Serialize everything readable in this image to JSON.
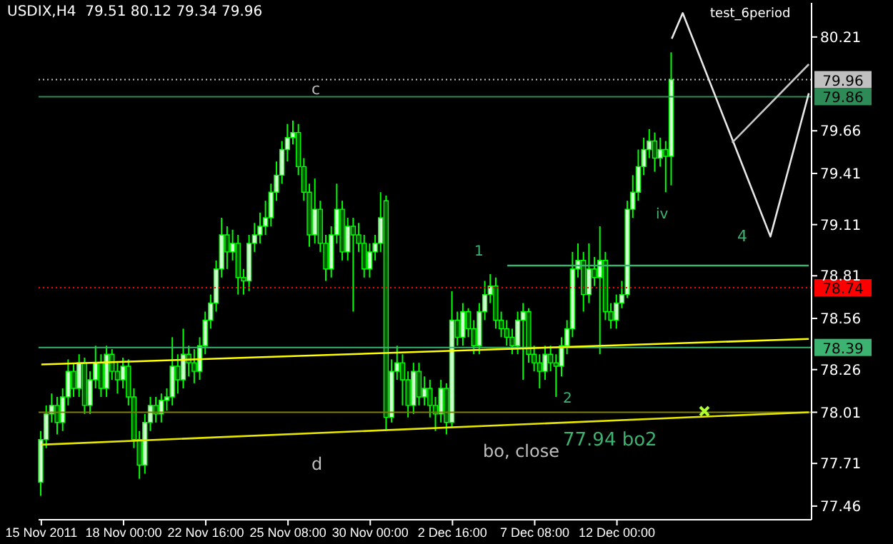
{
  "chart_data": {
    "type": "candlestick",
    "title": "USDIX,H4  79.51 80.12 79.34 79.96",
    "categories": [
      "15 Nov 2011",
      null,
      null,
      null,
      null,
      null,
      null,
      null,
      null,
      null,
      null,
      null,
      null,
      null,
      null,
      "18 Nov 00:00",
      null,
      null,
      null,
      null,
      null,
      null,
      null,
      null,
      null,
      null,
      null,
      null,
      null,
      null,
      "22 Nov 16:00",
      null,
      null,
      null,
      null,
      null,
      null,
      null,
      null,
      null,
      null,
      null,
      null,
      null,
      null,
      "25 Nov 08:00",
      null,
      null,
      null,
      null,
      null,
      null,
      null,
      null,
      null,
      null,
      null,
      null,
      null,
      null,
      "30 Nov 00:00",
      null,
      null,
      null,
      null,
      null,
      null,
      null,
      null,
      null,
      null,
      null,
      null,
      null,
      null,
      "2 Dec 16:00",
      null,
      null,
      null,
      null,
      null,
      null,
      null,
      null,
      null,
      null,
      null,
      null,
      null,
      null,
      "7 Dec 08:00",
      null,
      null,
      null,
      null,
      null,
      null,
      null,
      null,
      null,
      null,
      null,
      null,
      null,
      null,
      "12 Dec 00:00",
      null,
      null,
      null,
      null,
      null,
      null,
      null,
      null,
      null,
      null,
      null,
      null,
      null,
      null,
      null,
      null,
      null,
      null,
      null,
      null,
      null,
      null,
      null,
      null,
      null,
      null,
      null,
      null,
      null,
      null,
      null,
      null,
      null,
      null,
      null
    ],
    "ohlc": [
      [
        77.6,
        77.9,
        77.52,
        77.85
      ],
      [
        77.85,
        78.05,
        77.8,
        78.0
      ],
      [
        78.0,
        78.12,
        77.95,
        78.05
      ],
      [
        78.05,
        78.1,
        77.88,
        77.95
      ],
      [
        77.95,
        78.15,
        77.9,
        78.1
      ],
      [
        78.1,
        78.32,
        78.05,
        78.25
      ],
      [
        78.25,
        78.3,
        78.1,
        78.15
      ],
      [
        78.15,
        78.35,
        78.1,
        78.3
      ],
      [
        78.3,
        78.33,
        78.0,
        78.05
      ],
      [
        78.05,
        78.25,
        78.0,
        78.2
      ],
      [
        78.2,
        78.4,
        78.15,
        78.3
      ],
      [
        78.3,
        78.35,
        78.1,
        78.15
      ],
      [
        78.15,
        78.4,
        78.1,
        78.35
      ],
      [
        78.35,
        78.38,
        78.2,
        78.25
      ],
      [
        78.25,
        78.3,
        78.12,
        78.2
      ],
      [
        78.2,
        78.33,
        78.15,
        78.28
      ],
      [
        78.28,
        78.32,
        78.05,
        78.1
      ],
      [
        78.1,
        78.15,
        77.8,
        77.85
      ],
      [
        77.85,
        77.9,
        77.62,
        77.7
      ],
      [
        77.7,
        78.0,
        77.65,
        77.95
      ],
      [
        77.95,
        78.1,
        77.9,
        78.05
      ],
      [
        78.05,
        78.1,
        77.95,
        78.0
      ],
      [
        78.0,
        78.12,
        77.95,
        78.08
      ],
      [
        78.08,
        78.15,
        78.02,
        78.1
      ],
      [
        78.1,
        78.45,
        78.05,
        78.28
      ],
      [
        78.28,
        78.35,
        78.12,
        78.2
      ],
      [
        78.2,
        78.5,
        78.15,
        78.35
      ],
      [
        78.35,
        78.4,
        78.22,
        78.3
      ],
      [
        78.3,
        78.38,
        78.18,
        78.25
      ],
      [
        78.25,
        78.45,
        78.2,
        78.4
      ],
      [
        78.4,
        78.6,
        78.35,
        78.55
      ],
      [
        78.55,
        78.7,
        78.5,
        78.65
      ],
      [
        78.65,
        78.9,
        78.6,
        78.85
      ],
      [
        78.85,
        79.15,
        78.8,
        79.05
      ],
      [
        79.05,
        79.1,
        78.85,
        78.95
      ],
      [
        78.95,
        79.08,
        78.9,
        79.0
      ],
      [
        79.0,
        79.05,
        78.7,
        78.8
      ],
      [
        78.8,
        78.85,
        78.7,
        78.78
      ],
      [
        78.78,
        79.05,
        78.72,
        79.0
      ],
      [
        79.0,
        79.12,
        78.95,
        79.05
      ],
      [
        79.05,
        79.18,
        79.0,
        79.1
      ],
      [
        79.1,
        79.25,
        79.05,
        79.15
      ],
      [
        79.15,
        79.35,
        79.1,
        79.3
      ],
      [
        79.3,
        79.48,
        79.25,
        79.4
      ],
      [
        79.4,
        79.6,
        79.35,
        79.55
      ],
      [
        79.55,
        79.7,
        79.48,
        79.62
      ],
      [
        79.62,
        79.72,
        79.58,
        79.65
      ],
      [
        79.65,
        79.7,
        79.4,
        79.45
      ],
      [
        79.45,
        79.5,
        79.25,
        79.3
      ],
      [
        79.3,
        79.35,
        78.98,
        79.05
      ],
      [
        79.05,
        79.38,
        79.0,
        79.2
      ],
      [
        79.2,
        79.25,
        78.95,
        79.0
      ],
      [
        79.0,
        79.05,
        78.78,
        78.85
      ],
      [
        78.85,
        79.1,
        78.8,
        79.05
      ],
      [
        79.05,
        79.35,
        79.0,
        79.2
      ],
      [
        79.2,
        79.25,
        78.9,
        78.95
      ],
      [
        78.95,
        79.15,
        78.9,
        79.1
      ],
      [
        79.1,
        79.15,
        78.6,
        79.05
      ],
      [
        79.05,
        79.12,
        78.95,
        79.0
      ],
      [
        79.0,
        79.05,
        78.8,
        78.85
      ],
      [
        78.85,
        79.0,
        78.8,
        78.95
      ],
      [
        78.95,
        79.05,
        78.9,
        79.0
      ],
      [
        79.0,
        79.3,
        78.95,
        79.15
      ],
      [
        79.25,
        79.28,
        77.9,
        77.98
      ],
      [
        77.98,
        78.32,
        77.95,
        78.25
      ],
      [
        78.25,
        78.4,
        78.2,
        78.3
      ],
      [
        78.3,
        78.35,
        78.05,
        78.2
      ],
      [
        78.2,
        78.25,
        77.98,
        78.05
      ],
      [
        78.05,
        78.3,
        78.0,
        78.25
      ],
      [
        78.25,
        78.3,
        78.05,
        78.1
      ],
      [
        78.1,
        78.22,
        78.05,
        78.15
      ],
      [
        78.15,
        78.2,
        77.98,
        78.05
      ],
      [
        78.05,
        78.1,
        77.9,
        78.0
      ],
      [
        78.0,
        78.2,
        77.95,
        78.15
      ],
      [
        78.15,
        78.18,
        77.88,
        77.95
      ],
      [
        77.95,
        78.72,
        77.92,
        78.55
      ],
      [
        78.55,
        78.6,
        78.4,
        78.45
      ],
      [
        78.45,
        78.65,
        78.4,
        78.6
      ],
      [
        78.6,
        78.62,
        78.45,
        78.5
      ],
      [
        78.5,
        78.55,
        78.35,
        78.4
      ],
      [
        78.4,
        78.65,
        78.35,
        78.6
      ],
      [
        78.6,
        78.78,
        78.55,
        78.7
      ],
      [
        78.7,
        78.82,
        78.65,
        78.75
      ],
      [
        78.75,
        78.8,
        78.5,
        78.55
      ],
      [
        78.55,
        78.6,
        78.45,
        78.5
      ],
      [
        78.5,
        78.55,
        78.4,
        78.45
      ],
      [
        78.45,
        78.5,
        78.35,
        78.4
      ],
      [
        78.4,
        78.6,
        78.35,
        78.55
      ],
      [
        78.55,
        78.65,
        78.2,
        78.6
      ],
      [
        78.6,
        78.62,
        78.3,
        78.35
      ],
      [
        78.35,
        78.4,
        78.25,
        78.3
      ],
      [
        78.3,
        78.35,
        78.15,
        78.25
      ],
      [
        78.25,
        78.4,
        78.2,
        78.35
      ],
      [
        78.35,
        78.4,
        78.25,
        78.3
      ],
      [
        78.3,
        78.35,
        78.1,
        78.28
      ],
      [
        78.28,
        78.45,
        78.22,
        78.4
      ],
      [
        78.4,
        78.55,
        78.35,
        78.5
      ],
      [
        78.5,
        78.95,
        78.45,
        78.85
      ],
      [
        78.85,
        79.0,
        78.8,
        78.9
      ],
      [
        78.9,
        78.95,
        78.6,
        78.7
      ],
      [
        78.7,
        79.0,
        78.65,
        78.85
      ],
      [
        78.85,
        78.92,
        78.75,
        78.8
      ],
      [
        78.8,
        79.1,
        78.35,
        78.9
      ],
      [
        78.9,
        78.95,
        78.55,
        78.6
      ],
      [
        78.6,
        78.65,
        78.5,
        78.55
      ],
      [
        78.55,
        78.7,
        78.5,
        78.65
      ],
      [
        78.65,
        78.78,
        78.62,
        78.7
      ],
      [
        78.7,
        79.25,
        78.68,
        79.2
      ],
      [
        79.2,
        79.4,
        79.15,
        79.3
      ],
      [
        79.3,
        79.55,
        79.25,
        79.45
      ],
      [
        79.45,
        79.62,
        79.4,
        79.55
      ],
      [
        79.55,
        79.67,
        79.5,
        79.6
      ],
      [
        79.6,
        79.65,
        79.42,
        79.5
      ],
      [
        79.5,
        79.62,
        79.45,
        79.55
      ],
      [
        79.55,
        79.6,
        79.3,
        79.51
      ],
      [
        79.51,
        80.12,
        79.34,
        79.96
      ],
      null,
      null,
      null,
      null,
      null,
      null,
      null,
      null,
      null,
      null,
      null,
      null,
      null,
      null,
      null,
      null,
      null,
      null,
      null,
      null,
      null,
      null,
      null,
      null,
      null
    ],
    "series": [
      {
        "type": "line",
        "color": "#ffff00",
        "values": [
          78.29,
          null,
          null,
          null,
          null,
          null,
          null,
          null,
          null,
          null,
          null,
          null,
          null,
          null,
          null,
          null,
          null,
          null,
          null,
          null,
          null,
          null,
          null,
          null,
          null,
          null,
          null,
          null,
          null,
          null,
          null,
          null,
          null,
          null,
          null,
          null,
          null,
          null,
          null,
          null,
          null,
          null,
          null,
          null,
          null,
          null,
          null,
          null,
          null,
          null,
          null,
          null,
          null,
          null,
          null,
          null,
          null,
          null,
          null,
          null,
          null,
          null,
          null,
          null,
          null,
          null,
          null,
          null,
          null,
          null,
          null,
          null,
          null,
          null,
          null,
          null,
          null,
          null,
          null,
          null,
          null,
          null,
          null,
          null,
          null,
          null,
          null,
          null,
          null,
          null,
          null,
          null,
          null,
          null,
          null,
          null,
          null,
          null,
          null,
          null,
          null,
          null,
          null,
          null,
          null,
          null,
          null,
          null,
          null,
          null,
          null,
          null,
          null,
          null,
          null,
          null,
          null,
          null,
          null,
          null,
          null,
          null,
          null,
          null,
          null,
          null,
          null,
          null,
          null,
          null,
          null,
          null,
          null,
          null,
          null,
          null,
          null,
          null,
          null,
          null,
          78.44
        ]
      },
      {
        "type": "line",
        "color": "#e6e600",
        "values": [
          77.82,
          null,
          null,
          null,
          null,
          null,
          null,
          null,
          null,
          null,
          null,
          null,
          null,
          null,
          null,
          null,
          null,
          null,
          null,
          null,
          null,
          null,
          null,
          null,
          null,
          null,
          null,
          null,
          null,
          null,
          null,
          null,
          null,
          null,
          null,
          null,
          null,
          null,
          null,
          null,
          null,
          null,
          null,
          null,
          null,
          null,
          null,
          null,
          null,
          null,
          null,
          null,
          null,
          null,
          null,
          null,
          null,
          null,
          null,
          null,
          null,
          null,
          null,
          null,
          null,
          null,
          null,
          null,
          null,
          null,
          null,
          null,
          null,
          null,
          null,
          null,
          null,
          null,
          null,
          null,
          null,
          null,
          null,
          null,
          null,
          null,
          null,
          null,
          null,
          null,
          null,
          null,
          null,
          null,
          null,
          null,
          null,
          null,
          null,
          null,
          null,
          null,
          null,
          null,
          null,
          null,
          null,
          null,
          null,
          null,
          null,
          null,
          null,
          null,
          null,
          null,
          null,
          null,
          null,
          null,
          null,
          null,
          null,
          null,
          null,
          null,
          null,
          null,
          null,
          null,
          null,
          null,
          null,
          null,
          null,
          null,
          null,
          null,
          null,
          null,
          78.01
        ]
      },
      {
        "type": "line",
        "color": "#3cb371",
        "values": [
          null,
          null,
          null,
          null,
          null,
          null,
          null,
          null,
          null,
          null,
          null,
          null,
          null,
          null,
          null,
          null,
          null,
          null,
          null,
          null,
          null,
          null,
          null,
          null,
          null,
          null,
          null,
          null,
          null,
          null,
          null,
          null,
          null,
          null,
          null,
          null,
          null,
          null,
          null,
          null,
          null,
          null,
          null,
          null,
          null,
          null,
          null,
          null,
          null,
          null,
          null,
          null,
          null,
          null,
          null,
          null,
          null,
          null,
          null,
          null,
          null,
          null,
          null,
          null,
          null,
          null,
          null,
          null,
          null,
          null,
          null,
          null,
          null,
          null,
          null,
          null,
          null,
          null,
          null,
          null,
          null,
          null,
          null,
          null,
          null,
          78.87,
          null,
          null,
          null,
          null,
          null,
          null,
          null,
          null,
          null,
          null,
          null,
          null,
          null,
          null,
          null,
          null,
          null,
          null,
          null,
          null,
          null,
          null,
          null,
          null,
          null,
          null,
          null,
          null,
          null,
          null,
          null,
          null,
          null,
          null,
          null,
          null,
          null,
          null,
          null,
          null,
          null,
          null,
          null,
          null,
          null,
          null,
          null,
          null,
          null,
          null,
          null,
          null,
          null,
          null,
          78.87
        ]
      },
      {
        "type": "line",
        "color": "#e8e8e8",
        "values": [
          null,
          null,
          null,
          null,
          null,
          null,
          null,
          null,
          null,
          null,
          null,
          null,
          null,
          null,
          null,
          null,
          null,
          null,
          null,
          null,
          null,
          null,
          null,
          null,
          null,
          null,
          null,
          null,
          null,
          null,
          null,
          null,
          null,
          null,
          null,
          null,
          null,
          null,
          null,
          null,
          null,
          null,
          null,
          null,
          null,
          null,
          null,
          null,
          null,
          null,
          null,
          null,
          null,
          null,
          null,
          null,
          null,
          null,
          null,
          null,
          null,
          null,
          null,
          null,
          null,
          null,
          null,
          null,
          null,
          null,
          null,
          null,
          null,
          null,
          null,
          null,
          null,
          null,
          null,
          null,
          null,
          null,
          null,
          null,
          null,
          null,
          null,
          null,
          null,
          null,
          null,
          null,
          null,
          null,
          null,
          null,
          null,
          null,
          null,
          null,
          null,
          null,
          null,
          null,
          null,
          null,
          null,
          null,
          null,
          null,
          null,
          null,
          null,
          null,
          null,
          80.2,
          null,
          80.35,
          null,
          null,
          null,
          null,
          null,
          null,
          null,
          null,
          null,
          null,
          null,
          null,
          null,
          null,
          null,
          79.04,
          null,
          null,
          null,
          null,
          null,
          null,
          79.88
        ]
      },
      {
        "type": "line",
        "color": "#c8c8c8",
        "values": [
          null,
          null,
          null,
          null,
          null,
          null,
          null,
          null,
          null,
          null,
          null,
          null,
          null,
          null,
          null,
          null,
          null,
          null,
          null,
          null,
          null,
          null,
          null,
          null,
          null,
          null,
          null,
          null,
          null,
          null,
          null,
          null,
          null,
          null,
          null,
          null,
          null,
          null,
          null,
          null,
          null,
          null,
          null,
          null,
          null,
          null,
          null,
          null,
          null,
          null,
          null,
          null,
          null,
          null,
          null,
          null,
          null,
          null,
          null,
          null,
          null,
          null,
          null,
          null,
          null,
          null,
          null,
          null,
          null,
          null,
          null,
          null,
          null,
          null,
          null,
          null,
          null,
          null,
          null,
          null,
          null,
          null,
          null,
          null,
          null,
          null,
          null,
          null,
          null,
          null,
          null,
          null,
          null,
          null,
          null,
          null,
          null,
          null,
          null,
          null,
          null,
          null,
          null,
          null,
          null,
          null,
          null,
          null,
          null,
          null,
          null,
          null,
          null,
          null,
          null,
          null,
          null,
          null,
          null,
          null,
          null,
          null,
          null,
          null,
          null,
          null,
          79.59,
          null,
          null,
          null,
          null,
          null,
          null,
          null,
          null,
          null,
          null,
          null,
          null,
          null,
          80.05
        ]
      }
    ],
    "ylim": [
      77.38,
      80.41
    ],
    "yticks": [
      80.21,
      79.66,
      79.41,
      79.11,
      78.81,
      78.56,
      78.26,
      78.01,
      77.71,
      77.46
    ],
    "ref_lines": [
      {
        "axis": "y",
        "value": 79.96,
        "label": "79.96",
        "color": "#c0c0c0",
        "line_style": "dotted"
      },
      {
        "axis": "y",
        "value": 79.86,
        "label": "79.86",
        "color": "#2e8b57"
      },
      {
        "axis": "y",
        "value": 78.74,
        "label": "78.74",
        "color": "#ff0000",
        "line_style": "dotted"
      },
      {
        "axis": "y",
        "value": 78.39,
        "label": "78.39",
        "color": "#3cb371"
      },
      {
        "axis": "y",
        "value": 78.01,
        "color": "#808000"
      }
    ],
    "annotations": [
      "c",
      "1",
      "2",
      "iv",
      "4",
      "d",
      "bo, close",
      "77.94 bo2",
      "test_6period"
    ]
  }
}
